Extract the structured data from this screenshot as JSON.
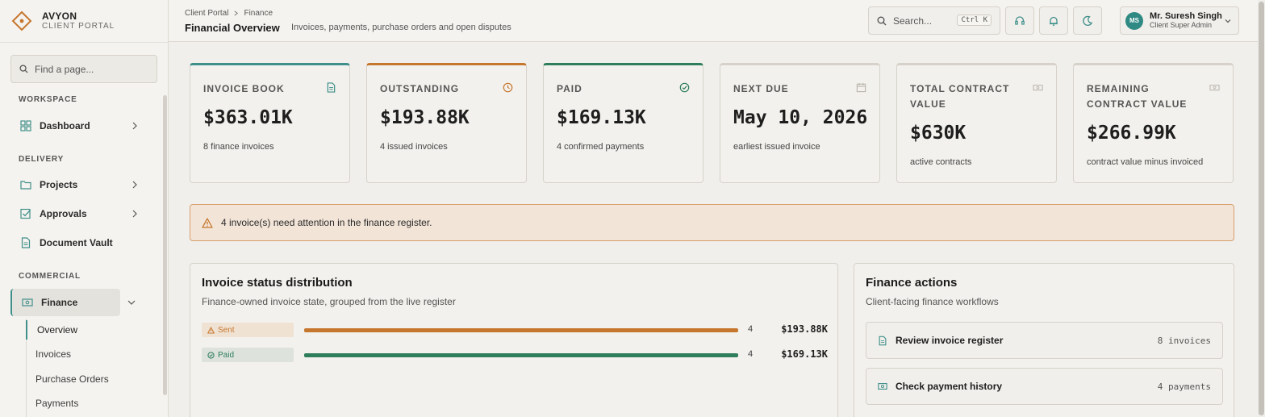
{
  "brand": {
    "name": "AVYON",
    "subtitle": "CLIENT PORTAL",
    "accent": "#c6772e"
  },
  "sidebar": {
    "find_placeholder": "Find a page...",
    "sections": {
      "workspace": "WORKSPACE",
      "delivery": "DELIVERY",
      "commercial": "COMMERCIAL"
    },
    "items": {
      "dashboard": "Dashboard",
      "projects": "Projects",
      "approvals": "Approvals",
      "document_vault": "Document Vault",
      "finance": "Finance"
    },
    "finance_sub": {
      "overview": "Overview",
      "invoices": "Invoices",
      "purchase_orders": "Purchase Orders",
      "payments": "Payments"
    }
  },
  "header": {
    "breadcrumb": [
      "Client Portal",
      "Finance"
    ],
    "title": "Financial Overview",
    "description": "Invoices, payments, purchase orders and open disputes",
    "search_label": "Search...",
    "search_shortcut": "Ctrl K",
    "user": {
      "initials": "MS",
      "name": "Mr. Suresh Singh",
      "role": "Client Super Admin"
    }
  },
  "cards": {
    "invoice_book": {
      "label": "INVOICE BOOK",
      "value": "$363.01K",
      "note": "8 finance invoices",
      "color": "#3f8f8a"
    },
    "outstanding": {
      "label": "OUTSTANDING",
      "value": "$193.88K",
      "note": "4 issued invoices",
      "color": "#c6772e"
    },
    "paid": {
      "label": "PAID",
      "value": "$169.13K",
      "note": "4 confirmed payments",
      "color": "#2e7d5b"
    },
    "next_due": {
      "label": "NEXT DUE",
      "value": "May 10, 2026",
      "note": "earliest issued invoice",
      "color": "#d6d2ca"
    },
    "total_contract": {
      "label": "TOTAL CONTRACT VALUE",
      "value": "$630K",
      "note": "active contracts",
      "color": "#d6d2ca"
    },
    "remaining_contract": {
      "label": "REMAINING CONTRACT VALUE",
      "value": "$266.99K",
      "note": "contract value minus invoiced",
      "color": "#d6d2ca"
    }
  },
  "alert": {
    "text": "4 invoice(s) need attention in the finance register."
  },
  "distribution": {
    "title": "Invoice status distribution",
    "subtitle": "Finance-owned invoice state, grouped from the live register",
    "rows": [
      {
        "status": "Sent",
        "count": "4",
        "amount": "$193.88K",
        "fill": 1.0,
        "color": "#c6772e",
        "badge_bg": "#efe2d3"
      },
      {
        "status": "Paid",
        "count": "4",
        "amount": "$169.13K",
        "fill": 1.0,
        "color": "#2e7d5b",
        "badge_bg": "#dde3dc"
      }
    ]
  },
  "actions": {
    "title": "Finance actions",
    "subtitle": "Client-facing finance workflows",
    "items": [
      {
        "label": "Review invoice register",
        "meta": "8 invoices"
      },
      {
        "label": "Check payment history",
        "meta": "4 payments"
      }
    ]
  }
}
